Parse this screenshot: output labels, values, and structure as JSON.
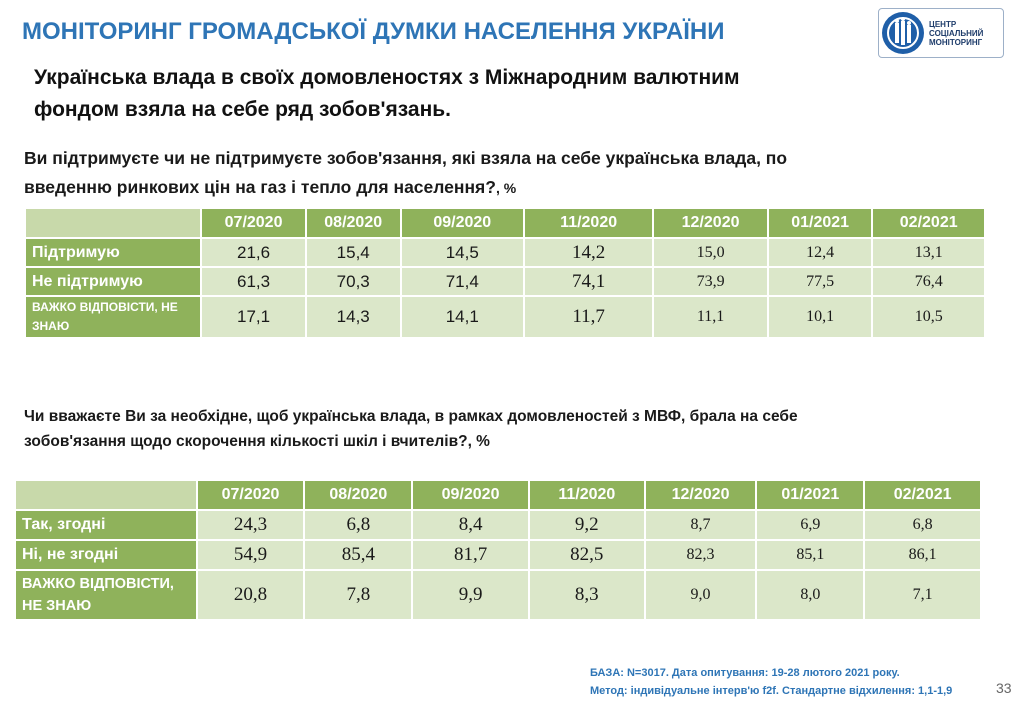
{
  "header": {
    "title": "МОНІТОРИНГ ГРОМАДСЬКОЇ ДУМКИ НАСЕЛЕННЯ УКРАЇНИ",
    "logo": {
      "line1": "ЦЕНТР",
      "line2": "СОЦІАЛЬНИЙ",
      "line3": "МОНІТОРИНГ"
    }
  },
  "subtitle": {
    "line1": "Українська влада в своїх домовленостях з Міжнародним валютним",
    "line2": "фондом взяла на себе ряд зобов'язань."
  },
  "question1": {
    "line1": "Ви підтримуєте чи не підтримуєте зобов'язання, які взяла на себе українська влада, по",
    "line2_main": "введенню ринкових цін на газ і тепло для населення?",
    "line2_unit": ", %"
  },
  "table1": {
    "columns": [
      "07/2020",
      "08/2020",
      "09/2020",
      "11/2020",
      "12/2020",
      "01/2021",
      "02/2021"
    ],
    "rows": [
      {
        "label": "Підтримую",
        "values": [
          "21,6",
          "15,4",
          "14,5",
          "14,2",
          "15,0",
          "12,4",
          "13,1"
        ]
      },
      {
        "label": "Не підтримую",
        "values": [
          "61,3",
          "70,3",
          "71,4",
          "74,1",
          "73,9",
          "77,5",
          "76,4"
        ]
      },
      {
        "label_line1": "ВАЖКО ВІДПОВІСТИ, НЕ",
        "label_line2": "ЗНАЮ",
        "values": [
          "17,1",
          "14,3",
          "14,1",
          "11,7",
          "11,1",
          "10,1",
          "10,5"
        ]
      }
    ]
  },
  "question2": {
    "line1": "Чи вважаєте Ви за необхідне, щоб українська влада, в рамках домовленостей з МВФ, брала на себе",
    "line2": "зобов'язання щодо скорочення кількості шкіл і вчителів?, %"
  },
  "table2": {
    "columns": [
      "07/2020",
      "08/2020",
      "09/2020",
      "11/2020",
      "12/2020",
      "01/2021",
      "02/2021"
    ],
    "rows": [
      {
        "label": "Так, згодні",
        "values": [
          "24,3",
          "6,8",
          "8,4",
          "9,2",
          "8,7",
          "6,9",
          "6,8"
        ]
      },
      {
        "label": "Ні, не згодні",
        "values": [
          "54,9",
          "85,4",
          "81,7",
          "82,5",
          "82,3",
          "85,1",
          "86,1"
        ]
      },
      {
        "label_line1": "ВАЖКО ВІДПОВІСТИ,",
        "label_line2": "НЕ ЗНАЮ",
        "values": [
          "20,8",
          "7,8",
          "9,9",
          "8,3",
          "9,0",
          "8,0",
          "7,1"
        ]
      }
    ]
  },
  "footnote": {
    "line1": "БАЗА: N=3017. Дата опитування: 19-28 лютого 2021 року.",
    "line2": "Метод: індивідуальне інтерв'ю f2f. Стандартне відхилення: 1,1-1,9"
  },
  "page_number": "33",
  "colors": {
    "title_blue": "#2e75b6",
    "header_green": "#8fb25b",
    "cell_light_green": "#dbe7c9"
  }
}
